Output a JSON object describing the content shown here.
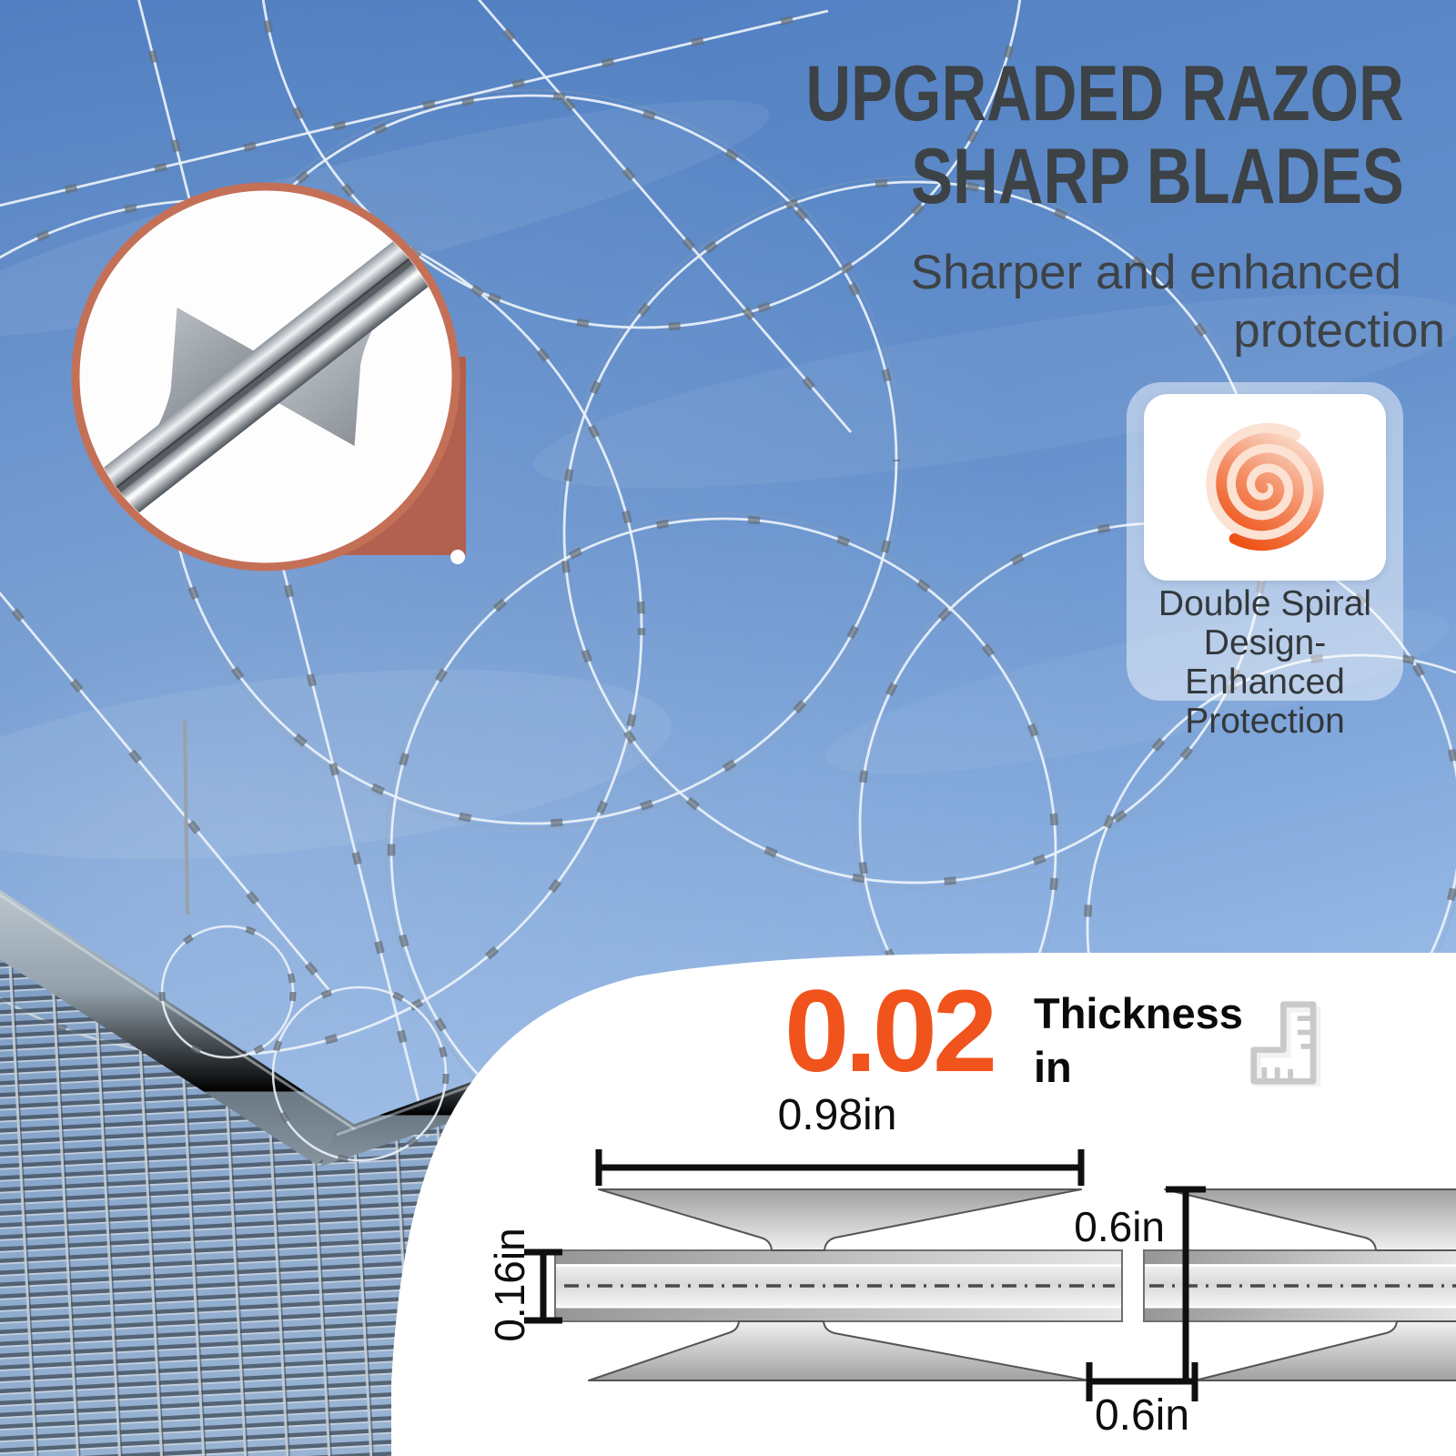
{
  "headline": {
    "line1": "UPGRADED RAZOR",
    "line2": "SHARP BLADES",
    "subline1": "Sharper and enhanced",
    "subline2": "protection",
    "text_color": "#3d4246"
  },
  "feature_card": {
    "icon": "double-spiral-icon",
    "line1": "Double Spiral",
    "line2": "Design-Enhanced",
    "line3": "Protection",
    "accent_color": "#F0541C"
  },
  "spec": {
    "value": "0.02",
    "label": "Thickness",
    "unit": "in",
    "value_color": "#F0541C",
    "icon": "ruler-square-icon"
  },
  "diagram": {
    "type": "technical-dimension-drawing",
    "dims": {
      "blade_length": "0.98in",
      "strip_thickness": "0.16in",
      "blade_height": "0.6in",
      "blade_gap": "0.6in"
    }
  }
}
